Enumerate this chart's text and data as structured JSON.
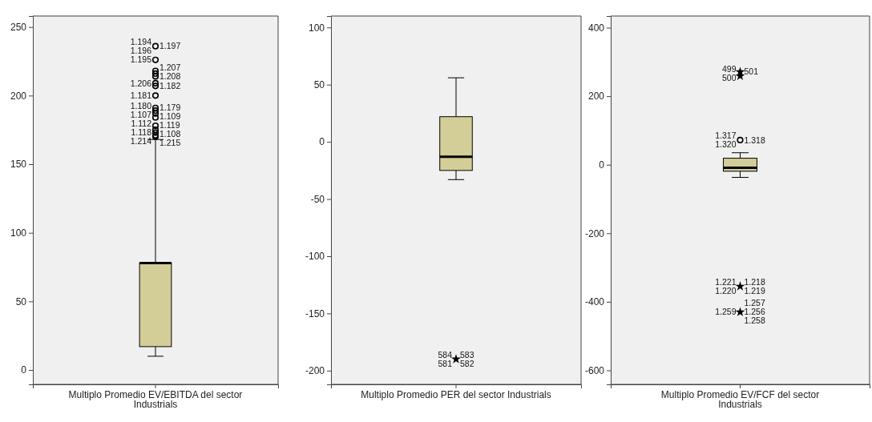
{
  "chart_data": [
    {
      "type": "box",
      "categories": [
        "Multiplo Promedio EV/EBITDA del sector Industrials"
      ],
      "color": "#d3ce97",
      "grid": false,
      "boxes": [
        {
          "low": 10,
          "q1": 17,
          "median": 78,
          "q3": 78,
          "high": 168
        }
      ],
      "series": [
        {
          "type": "scatter",
          "x": [
            "Multiplo Promedio EV/EBITDA del sector Industrials",
            "Multiplo Promedio EV/EBITDA del sector Industrials",
            "Multiplo Promedio EV/EBITDA del sector Industrials",
            "Multiplo Promedio EV/EBITDA del sector Industrials",
            "Multiplo Promedio EV/EBITDA del sector Industrials",
            "Multiplo Promedio EV/EBITDA del sector Industrials",
            "Multiplo Promedio EV/EBITDA del sector Industrials",
            "Multiplo Promedio EV/EBITDA del sector Industrials",
            "Multiplo Promedio EV/EBITDA del sector Industrials",
            "Multiplo Promedio EV/EBITDA del sector Industrials",
            "Multiplo Promedio EV/EBITDA del sector Industrials",
            "Multiplo Promedio EV/EBITDA del sector Industrials",
            "Multiplo Promedio EV/EBITDA del sector Industrials",
            "Multiplo Promedio EV/EBITDA del sector Industrials",
            "Multiplo Promedio EV/EBITDA del sector Industrials",
            "Multiplo Promedio EV/EBITDA del sector Industrials",
            "Multiplo Promedio EV/EBITDA del sector Industrials"
          ],
          "values": [
            236,
            226,
            218,
            216,
            214,
            209,
            207,
            200,
            191,
            189,
            187,
            184,
            178,
            175,
            173,
            171,
            170
          ],
          "marker": "circle",
          "color": "#000000"
        }
      ],
      "ylim": [
        -10.5,
        258
      ],
      "yticks": [
        0,
        50,
        100,
        150,
        200,
        250
      ],
      "annotations": [
        {
          "text": "1.194",
          "x": "Multiplo Promedio EV/EBITDA del sector Industrials",
          "y": 236
        },
        {
          "text": "1.197",
          "x": "Multiplo Promedio EV/EBITDA del sector Industrials",
          "y": 236
        },
        {
          "text": "1.195",
          "x": "Multiplo Promedio EV/EBITDA del sector Industrials",
          "y": 226
        },
        {
          "text": "1.207",
          "x": "Multiplo Promedio EV/EBITDA del sector Industrials",
          "y": 218
        },
        {
          "text": "1.206",
          "x": "Multiplo Promedio EV/EBITDA del sector Industrials",
          "y": 209
        },
        {
          "text": "1.208",
          "x": "Multiplo Promedio EV/EBITDA del sector Industrials",
          "y": 216
        },
        {
          "text": "1.181",
          "x": "Multiplo Promedio EV/EBITDA del sector Industrials",
          "y": 200
        },
        {
          "text": "1.182",
          "x": "Multiplo Promedio EV/EBITDA del sector Industrials",
          "y": 207
        },
        {
          "text": "1.180",
          "x": "Multiplo Promedio EV/EBITDA del sector Industrials",
          "y": 191
        },
        {
          "text": "1.179",
          "x": "Multiplo Promedio EV/EBITDA del sector Industrials",
          "y": 189
        },
        {
          "text": "1.107",
          "x": "Multiplo Promedio EV/EBITDA del sector Industrials",
          "y": 187
        },
        {
          "text": "1.109",
          "x": "Multiplo Promedio EV/EBITDA del sector Industrials",
          "y": 184
        },
        {
          "text": "1.112",
          "x": "Multiplo Promedio EV/EBITDA del sector Industrials",
          "y": 178
        },
        {
          "text": "1.119",
          "x": "Multiplo Promedio EV/EBITDA del sector Industrials",
          "y": 178
        },
        {
          "text": "1.118",
          "x": "Multiplo Promedio EV/EBITDA del sector Industrials",
          "y": 173
        },
        {
          "text": "1.108",
          "x": "Multiplo Promedio EV/EBITDA del sector Industrials",
          "y": 171
        },
        {
          "text": "1.214",
          "x": "Multiplo Promedio EV/EBITDA del sector Industrials",
          "y": 170
        },
        {
          "text": "1.215",
          "x": "Multiplo Promedio EV/EBITDA del sector Industrials",
          "y": 170
        },
        {
          "text": "1.196",
          "x": "Multiplo Promedio EV/EBITDA del sector Industrials",
          "y": 236
        }
      ]
    },
    {
      "type": "box",
      "categories": [
        "Multiplo Promedio PER del sector Industrials"
      ],
      "color": "#d3ce97",
      "grid": false,
      "boxes": [
        {
          "low": -33,
          "q1": -25,
          "median": -13,
          "q3": 22,
          "high": 56
        }
      ],
      "series": [
        {
          "type": "scatter",
          "x": [
            "Multiplo Promedio PER del sector Industrials"
          ],
          "values": [
            -190
          ],
          "marker": "star",
          "color": "#000000"
        }
      ],
      "ylim": [
        -212,
        110
      ],
      "yticks": [
        -200,
        -150,
        -100,
        -50,
        0,
        50,
        100
      ],
      "annotations": [
        {
          "text": "584",
          "x": "Multiplo Promedio PER del sector Industrials",
          "y": -190
        },
        {
          "text": "583",
          "x": "Multiplo Promedio PER del sector Industrials",
          "y": -190
        },
        {
          "text": "581",
          "x": "Multiplo Promedio PER del sector Industrials",
          "y": -190
        },
        {
          "text": "582",
          "x": "Multiplo Promedio PER del sector Industrials",
          "y": -190
        }
      ]
    },
    {
      "type": "box",
      "categories": [
        "Multiplo Promedio EV/FCF del sector Industrials"
      ],
      "color": "#d3ce97",
      "grid": false,
      "boxes": [
        {
          "low": -37,
          "q1": -19,
          "median": -9,
          "q3": 19,
          "high": 35
        }
      ],
      "series": [
        {
          "type": "scatter",
          "x": [
            "Multiplo Promedio EV/FCF del sector Industrials"
          ],
          "values": [
            72
          ],
          "marker": "circle",
          "color": "#000000"
        },
        {
          "type": "scatter",
          "x": [
            "Multiplo Promedio EV/FCF del sector Industrials",
            "Multiplo Promedio EV/FCF del sector Industrials",
            "Multiplo Promedio EV/FCF del sector Industrials",
            "Multiplo Promedio EV/FCF del sector Industrials"
          ],
          "values": [
            271,
            259,
            -355,
            -430
          ],
          "marker": "star",
          "color": "#000000"
        }
      ],
      "ylim": [
        -641,
        434
      ],
      "yticks": [
        -600,
        -400,
        -200,
        0,
        200,
        400
      ],
      "annotations": [
        {
          "text": "499",
          "x": "Multiplo Promedio EV/FCF del sector Industrials",
          "y": 271
        },
        {
          "text": "501",
          "x": "Multiplo Promedio EV/FCF del sector Industrials",
          "y": 271
        },
        {
          "text": "500",
          "x": "Multiplo Promedio EV/FCF del sector Industrials",
          "y": 259
        },
        {
          "text": "1.318",
          "x": "Multiplo Promedio EV/FCF del sector Industrials",
          "y": 72
        },
        {
          "text": "1.317",
          "x": "Multiplo Promedio EV/FCF del sector Industrials",
          "y": 72
        },
        {
          "text": "1.218",
          "x": "Multiplo Promedio EV/FCF del sector Industrials",
          "y": -355
        },
        {
          "text": "1.320",
          "x": "Multiplo Promedio EV/FCF del sector Industrials",
          "y": 72
        },
        {
          "text": "1.219",
          "x": "Multiplo Promedio EV/FCF del sector Industrials",
          "y": -355
        },
        {
          "text": "1.221",
          "x": "Multiplo Promedio EV/FCF del sector Industrials",
          "y": -355
        },
        {
          "text": "1.257",
          "x": "Multiplo Promedio EV/FCF del sector Industrials",
          "y": -430
        },
        {
          "text": "1.220",
          "x": "Multiplo Promedio EV/FCF del sector Industrials",
          "y": -355
        },
        {
          "text": "1.256",
          "x": "Multiplo Promedio EV/FCF del sector Industrials",
          "y": -430
        },
        {
          "text": "1.259",
          "x": "Multiplo Promedio EV/FCF del sector Industrials",
          "y": -430
        },
        {
          "text": "1.258",
          "x": "Multiplo Promedio EV/FCF del sector Industrials",
          "y": -430
        }
      ]
    }
  ]
}
